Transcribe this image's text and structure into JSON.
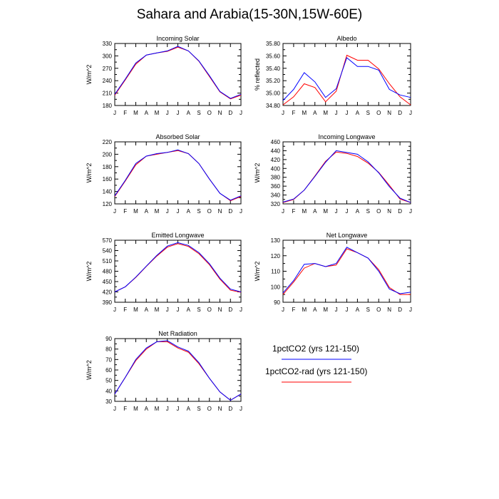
{
  "title": "Sahara and Arabia(15-30N,15W-60E)",
  "legend": [
    {
      "label": "1pctCO2 (yrs 121-150)",
      "color": "#0000ff"
    },
    {
      "label": "1pctCO2-rad (yrs 121-150)",
      "color": "#ff0000"
    }
  ],
  "chart_data": [
    {
      "type": "line",
      "title": "Incoming Solar",
      "ylabel": "W/m^2",
      "categories": [
        "J",
        "F",
        "M",
        "A",
        "M",
        "J",
        "J",
        "A",
        "S",
        "O",
        "N",
        "D",
        "J"
      ],
      "ylim": [
        180,
        330
      ],
      "yticks": [
        180,
        210,
        240,
        270,
        300,
        330
      ],
      "ytick_labels": [
        "180",
        "210",
        "240",
        "270",
        "300",
        "330"
      ],
      "series": [
        {
          "name": "1pctCO2 (yrs 121-150)",
          "color": "#0000ff",
          "values": [
            207,
            244,
            283,
            302,
            307,
            312,
            323,
            312,
            288,
            252,
            214,
            197,
            207
          ]
        },
        {
          "name": "1pctCO2-rad (yrs 121-150)",
          "color": "#ff0000",
          "values": [
            205,
            242,
            280,
            302,
            307,
            311,
            321,
            312,
            287,
            250,
            213,
            196,
            205
          ]
        }
      ]
    },
    {
      "type": "line",
      "title": "Albedo",
      "ylabel": "% reflected",
      "categories": [
        "J",
        "F",
        "M",
        "A",
        "M",
        "J",
        "J",
        "A",
        "S",
        "O",
        "N",
        "D",
        "J"
      ],
      "ylim": [
        34.8,
        35.8
      ],
      "yticks": [
        34.8,
        35.0,
        35.2,
        35.4,
        35.6,
        35.8
      ],
      "ytick_labels": [
        "34.80",
        "35.00",
        "35.20",
        "35.40",
        "35.60",
        "35.80"
      ],
      "series": [
        {
          "name": "1pctCO2 (yrs 121-150)",
          "color": "#0000ff",
          "values": [
            34.88,
            35.06,
            35.33,
            35.18,
            34.93,
            35.07,
            35.57,
            35.43,
            35.43,
            35.37,
            35.06,
            34.97,
            34.93
          ]
        },
        {
          "name": "1pctCO2-rad (yrs 121-150)",
          "color": "#ff0000",
          "values": [
            34.81,
            34.94,
            35.15,
            35.09,
            34.86,
            35.03,
            35.61,
            35.53,
            35.53,
            35.39,
            35.15,
            34.94,
            34.81
          ]
        }
      ]
    },
    {
      "type": "line",
      "title": "Absorbed Solar",
      "ylabel": "W/m^2",
      "categories": [
        "J",
        "F",
        "M",
        "A",
        "M",
        "J",
        "J",
        "A",
        "S",
        "O",
        "N",
        "D",
        "J"
      ],
      "ylim": [
        120,
        220
      ],
      "yticks": [
        120,
        140,
        160,
        180,
        200,
        220
      ],
      "ytick_labels": [
        "120",
        "140",
        "160",
        "180",
        "200",
        "220"
      ],
      "series": [
        {
          "name": "1pctCO2 (yrs 121-150)",
          "color": "#0000ff",
          "values": [
            133,
            158,
            185,
            197,
            201,
            203,
            207,
            201,
            185,
            160,
            137,
            126,
            133
          ]
        },
        {
          "name": "1pctCO2-rad (yrs 121-150)",
          "color": "#ff0000",
          "values": [
            132,
            157,
            183,
            197,
            200,
            203,
            206,
            201,
            185,
            160,
            137,
            125,
            132
          ]
        }
      ]
    },
    {
      "type": "line",
      "title": "Incoming Longwave",
      "ylabel": "W/m^2",
      "categories": [
        "J",
        "F",
        "M",
        "A",
        "M",
        "J",
        "J",
        "A",
        "S",
        "O",
        "N",
        "D",
        "J"
      ],
      "ylim": [
        320,
        460
      ],
      "yticks": [
        320,
        340,
        360,
        380,
        400,
        420,
        440,
        460
      ],
      "ytick_labels": [
        "320",
        "340",
        "360",
        "380",
        "400",
        "420",
        "440",
        "460"
      ],
      "series": [
        {
          "name": "1pctCO2 (yrs 121-150)",
          "color": "#0000ff",
          "values": [
            324,
            331,
            351,
            382,
            414,
            440,
            436,
            432,
            415,
            390,
            359,
            333,
            323
          ]
        },
        {
          "name": "1pctCO2-rad (yrs 121-150)",
          "color": "#ff0000",
          "values": [
            323,
            330,
            351,
            383,
            416,
            437,
            434,
            427,
            412,
            391,
            362,
            331,
            323
          ]
        }
      ]
    },
    {
      "type": "line",
      "title": "Emitted Longwave",
      "ylabel": "W/m^2",
      "categories": [
        "J",
        "F",
        "M",
        "A",
        "M",
        "J",
        "J",
        "A",
        "S",
        "O",
        "N",
        "D",
        "J"
      ],
      "ylim": [
        390,
        570
      ],
      "yticks": [
        390,
        420,
        450,
        480,
        510,
        540,
        570
      ],
      "ytick_labels": [
        "390",
        "420",
        "450",
        "480",
        "510",
        "540",
        "570"
      ],
      "series": [
        {
          "name": "1pctCO2 (yrs 121-150)",
          "color": "#0000ff",
          "values": [
            420,
            435,
            463,
            495,
            526,
            553,
            563,
            555,
            534,
            502,
            460,
            428,
            420
          ]
        },
        {
          "name": "1pctCO2-rad (yrs 121-150)",
          "color": "#ff0000",
          "values": [
            420,
            435,
            462,
            494,
            524,
            550,
            560,
            552,
            531,
            499,
            457,
            425,
            419
          ]
        }
      ]
    },
    {
      "type": "line",
      "title": "Net Longwave",
      "ylabel": "W/m^2",
      "categories": [
        "J",
        "F",
        "M",
        "A",
        "M",
        "J",
        "J",
        "A",
        "S",
        "O",
        "N",
        "D",
        "J"
      ],
      "ylim": [
        90,
        130
      ],
      "yticks": [
        90,
        100,
        110,
        120,
        130
      ],
      "ytick_labels": [
        "90",
        "100",
        "110",
        "120",
        "130"
      ],
      "series": [
        {
          "name": "1pctCO2 (yrs 121-150)",
          "color": "#0000ff",
          "values": [
            96,
            104,
            114.5,
            115,
            113,
            115,
            125.5,
            122,
            118.5,
            110,
            98.5,
            95.5,
            96.5
          ]
        },
        {
          "name": "1pctCO2-rad (yrs 121-150)",
          "color": "#ff0000",
          "values": [
            95,
            103,
            112,
            115,
            113,
            114,
            124.5,
            122,
            118.5,
            111,
            99.5,
            95,
            95
          ]
        }
      ]
    },
    {
      "type": "line",
      "title": "Net Radiation",
      "ylabel": "W/m^2",
      "categories": [
        "J",
        "F",
        "M",
        "A",
        "M",
        "J",
        "J",
        "A",
        "S",
        "O",
        "N",
        "D",
        "J"
      ],
      "ylim": [
        30,
        90
      ],
      "yticks": [
        30,
        40,
        50,
        60,
        70,
        80,
        90
      ],
      "ytick_labels": [
        "30",
        "40",
        "50",
        "60",
        "70",
        "80",
        "90"
      ],
      "series": [
        {
          "name": "1pctCO2 (yrs 121-150)",
          "color": "#0000ff",
          "values": [
            37,
            53,
            70,
            81,
            87,
            88,
            82,
            78,
            67,
            52,
            39,
            31,
            37
          ]
        },
        {
          "name": "1pctCO2-rad (yrs 121-150)",
          "color": "#ff0000",
          "values": [
            37,
            53,
            69,
            80,
            87,
            87,
            81,
            77,
            66,
            52,
            39,
            31,
            37
          ]
        }
      ]
    }
  ]
}
